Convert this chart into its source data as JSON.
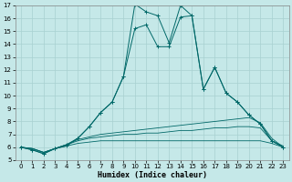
{
  "xlabel": "Humidex (Indice chaleur)",
  "xlim": [
    -0.5,
    23.5
  ],
  "ylim": [
    5,
    17
  ],
  "yticks": [
    5,
    6,
    7,
    8,
    9,
    10,
    11,
    12,
    13,
    14,
    15,
    16,
    17
  ],
  "xticks": [
    0,
    1,
    2,
    3,
    4,
    5,
    6,
    7,
    8,
    9,
    10,
    11,
    12,
    13,
    14,
    15,
    16,
    17,
    18,
    19,
    20,
    21,
    22,
    23
  ],
  "bg_color": "#c5e8e8",
  "line_color": "#006868",
  "grid_color": "#a8d0d0",
  "line1_y": [
    6.0,
    5.8,
    5.5,
    5.9,
    6.1,
    6.7,
    7.6,
    8.7,
    9.5,
    11.5,
    17.1,
    16.5,
    16.2,
    14.1,
    17.0,
    16.2,
    10.5,
    12.2,
    10.2,
    9.5,
    8.5,
    7.8,
    6.5,
    6.0
  ],
  "line2_y": [
    6.0,
    5.8,
    5.5,
    5.9,
    6.2,
    6.7,
    7.6,
    8.7,
    9.5,
    11.5,
    15.2,
    15.5,
    13.8,
    13.8,
    16.1,
    16.2,
    10.5,
    12.2,
    10.2,
    9.5,
    8.5,
    7.8,
    6.5,
    6.0
  ],
  "line_flat1_y": [
    6.0,
    5.9,
    5.6,
    5.9,
    6.2,
    6.6,
    6.8,
    7.0,
    7.1,
    7.2,
    7.3,
    7.4,
    7.5,
    7.6,
    7.7,
    7.8,
    7.9,
    8.0,
    8.1,
    8.2,
    8.3,
    7.9,
    6.7,
    6.0
  ],
  "line_flat2_y": [
    6.0,
    5.9,
    5.6,
    5.9,
    6.2,
    6.5,
    6.7,
    6.8,
    6.9,
    7.0,
    7.0,
    7.1,
    7.1,
    7.2,
    7.3,
    7.3,
    7.4,
    7.5,
    7.5,
    7.6,
    7.6,
    7.5,
    6.5,
    6.1
  ],
  "line_flat3_y": [
    6.0,
    5.9,
    5.6,
    5.9,
    6.1,
    6.3,
    6.4,
    6.5,
    6.5,
    6.5,
    6.5,
    6.5,
    6.5,
    6.5,
    6.5,
    6.5,
    6.5,
    6.5,
    6.5,
    6.5,
    6.5,
    6.5,
    6.3,
    6.0
  ]
}
